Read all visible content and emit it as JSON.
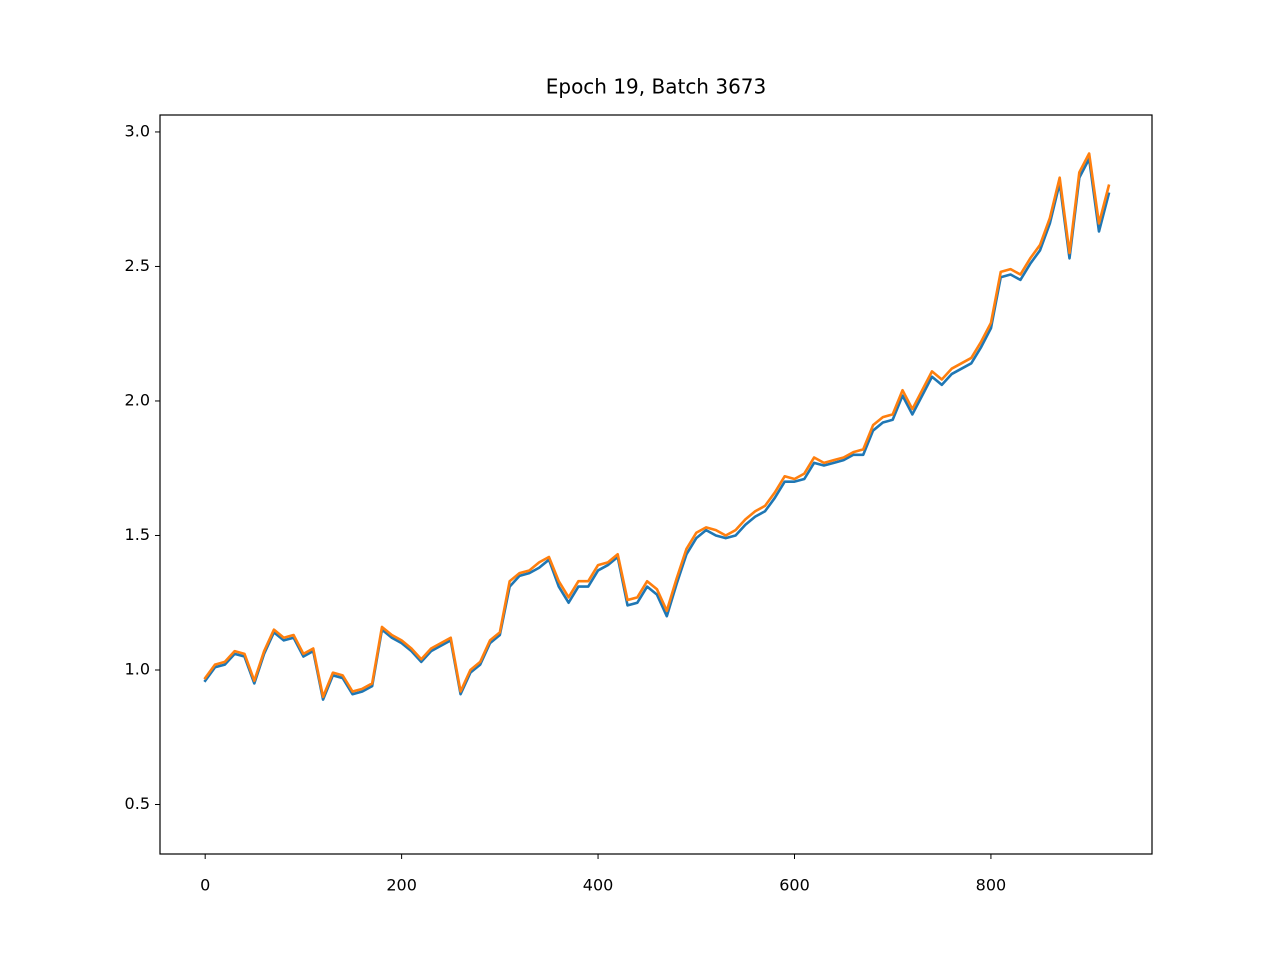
{
  "chart_data": {
    "type": "line",
    "title": "Epoch 19, Batch 3673",
    "x": [
      0,
      10,
      20,
      30,
      40,
      50,
      60,
      70,
      80,
      90,
      100,
      110,
      120,
      130,
      140,
      150,
      160,
      170,
      180,
      190,
      200,
      210,
      220,
      230,
      240,
      250,
      260,
      270,
      280,
      290,
      300,
      310,
      320,
      330,
      340,
      350,
      360,
      370,
      380,
      390,
      400,
      410,
      420,
      430,
      440,
      450,
      460,
      470,
      480,
      490,
      500,
      510,
      520,
      530,
      540,
      550,
      560,
      570,
      580,
      590,
      600,
      610,
      620,
      630,
      640,
      650,
      660,
      670,
      680,
      690,
      700,
      710,
      720,
      730,
      740,
      750,
      760,
      770,
      780,
      790,
      800,
      810,
      820,
      830,
      840,
      850,
      860,
      870,
      880,
      890,
      900,
      910,
      920
    ],
    "series": [
      {
        "color": "#1f77b4",
        "values": [
          0.96,
          1.01,
          1.02,
          1.06,
          1.05,
          0.95,
          1.06,
          1.14,
          1.11,
          1.12,
          1.05,
          1.07,
          0.89,
          0.98,
          0.97,
          0.91,
          0.92,
          0.94,
          1.15,
          1.12,
          1.1,
          1.07,
          1.03,
          1.07,
          1.09,
          1.11,
          0.91,
          0.99,
          1.02,
          1.1,
          1.13,
          1.31,
          1.35,
          1.36,
          1.38,
          1.41,
          1.31,
          1.25,
          1.31,
          1.31,
          1.37,
          1.39,
          1.42,
          1.24,
          1.25,
          1.31,
          1.28,
          1.2,
          1.32,
          1.43,
          1.49,
          1.52,
          1.5,
          1.49,
          1.5,
          1.54,
          1.57,
          1.59,
          1.64,
          1.7,
          1.7,
          1.71,
          1.77,
          1.76,
          1.77,
          1.78,
          1.8,
          1.8,
          1.89,
          1.92,
          1.93,
          2.02,
          1.95,
          2.02,
          2.09,
          2.06,
          2.1,
          2.12,
          2.14,
          2.2,
          2.27,
          2.46,
          2.47,
          2.45,
          2.51,
          2.56,
          2.66,
          2.81,
          2.53,
          2.83,
          2.9,
          2.63,
          2.77
        ]
      },
      {
        "color": "#ff7f0e",
        "values": [
          0.97,
          1.02,
          1.03,
          1.07,
          1.06,
          0.96,
          1.07,
          1.15,
          1.12,
          1.13,
          1.06,
          1.08,
          0.9,
          0.99,
          0.98,
          0.92,
          0.93,
          0.95,
          1.16,
          1.13,
          1.11,
          1.08,
          1.04,
          1.08,
          1.1,
          1.12,
          0.92,
          1.0,
          1.03,
          1.11,
          1.14,
          1.33,
          1.36,
          1.37,
          1.4,
          1.42,
          1.33,
          1.27,
          1.33,
          1.33,
          1.39,
          1.4,
          1.43,
          1.26,
          1.27,
          1.33,
          1.3,
          1.22,
          1.34,
          1.45,
          1.51,
          1.53,
          1.52,
          1.5,
          1.52,
          1.56,
          1.59,
          1.61,
          1.66,
          1.72,
          1.71,
          1.73,
          1.79,
          1.77,
          1.78,
          1.79,
          1.81,
          1.82,
          1.91,
          1.94,
          1.95,
          2.04,
          1.97,
          2.04,
          2.11,
          2.08,
          2.12,
          2.14,
          2.16,
          2.22,
          2.29,
          2.48,
          2.49,
          2.47,
          2.53,
          2.58,
          2.68,
          2.83,
          2.55,
          2.85,
          2.92,
          2.66,
          2.8
        ]
      }
    ],
    "xlim": [
      -46,
      964
    ],
    "ylim": [
      0.316,
      3.063
    ],
    "xticks": [
      0,
      200,
      400,
      600,
      800
    ],
    "yticks": [
      0.5,
      {
        "value": 1,
        "label": "1.0"
      },
      1.5,
      {
        "value": 2,
        "label": "2.0"
      },
      2.5,
      {
        "value": 3,
        "label": "3.0"
      }
    ]
  }
}
